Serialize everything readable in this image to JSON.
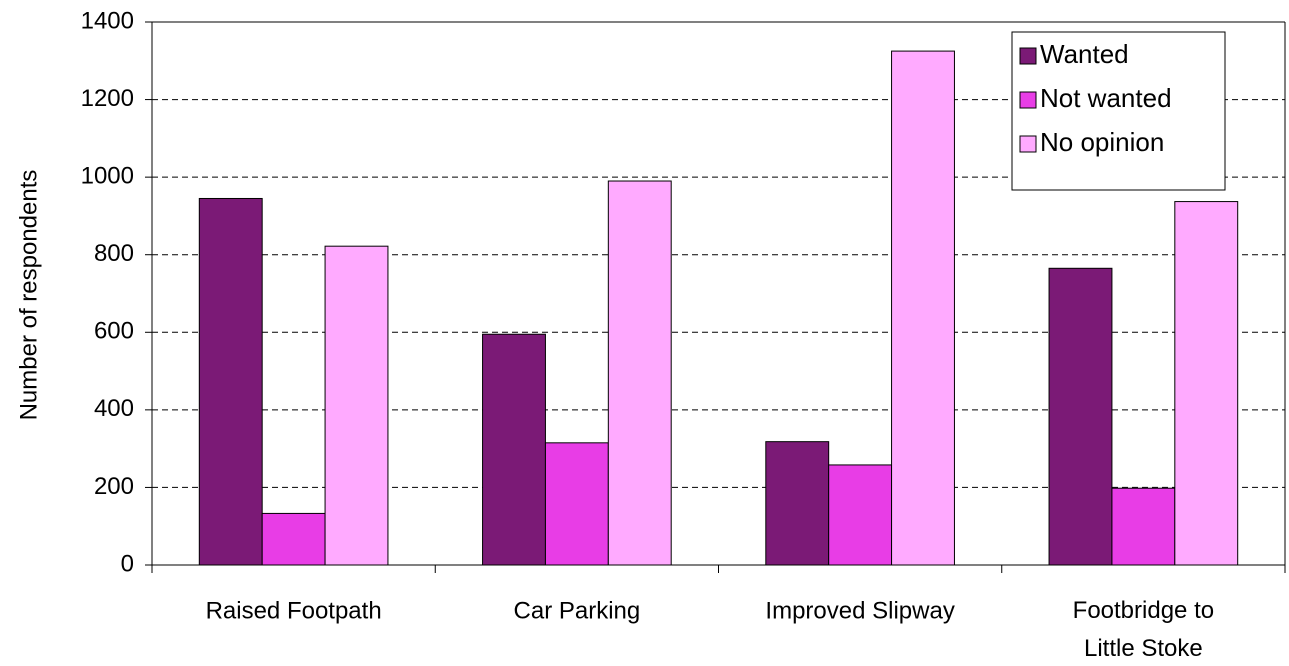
{
  "chart_data": {
    "type": "bar",
    "y_label": "Number of respondents",
    "categories": [
      "Raised Footpath",
      "Car Parking",
      "Improved Slipway",
      "Footbridge to Little Stoke"
    ],
    "series": [
      {
        "name": "Wanted",
        "color": "#7b1a76",
        "values": [
          945,
          595,
          318,
          765
        ]
      },
      {
        "name": "Not wanted",
        "color": "#e83de6",
        "values": [
          133,
          315,
          258,
          198
        ]
      },
      {
        "name": "No opinion",
        "color": "#ffaaff",
        "values": [
          822,
          990,
          1325,
          937
        ]
      }
    ],
    "ylim": [
      0,
      1400
    ],
    "yticks": [
      0,
      200,
      400,
      600,
      800,
      1000,
      1200,
      1400
    ],
    "grid": true,
    "legend": "top-right"
  }
}
